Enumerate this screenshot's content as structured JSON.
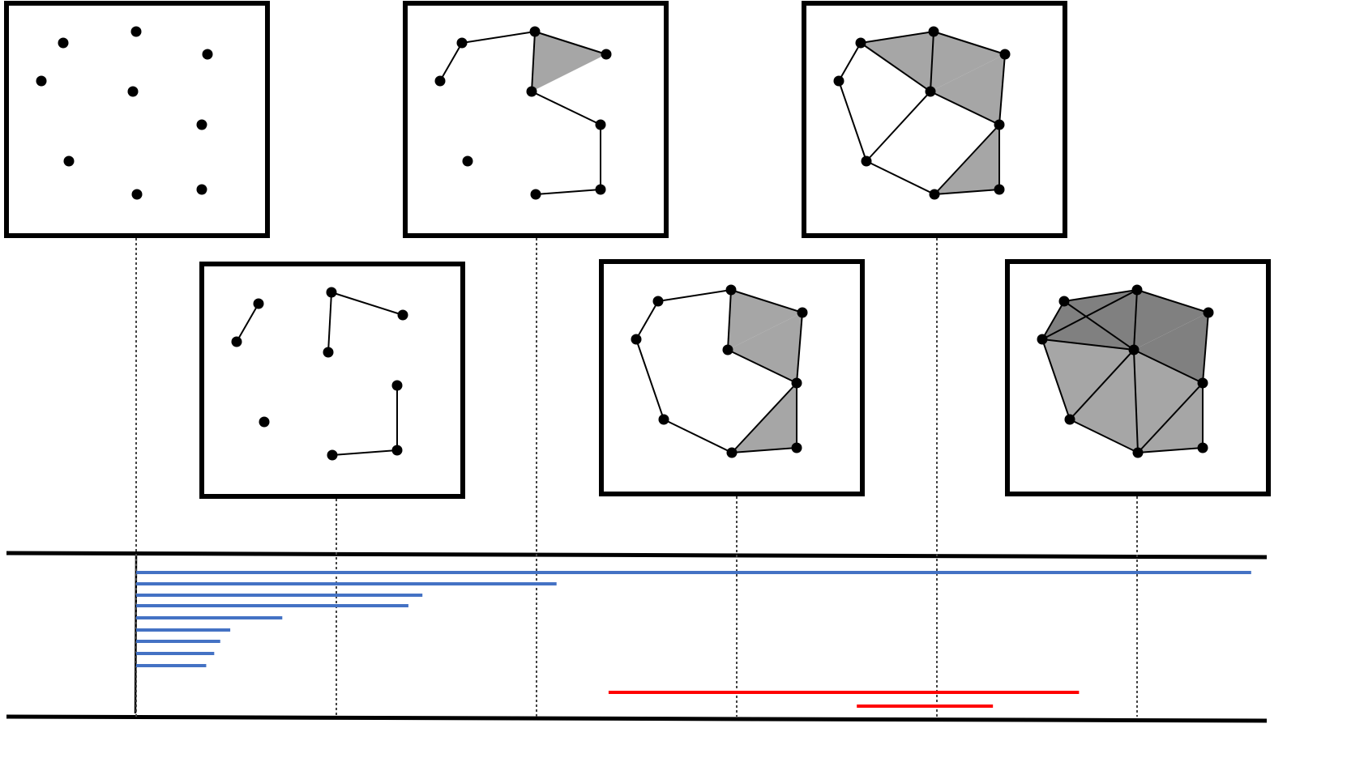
{
  "barcode": {
    "steps": [
      0,
      1,
      2,
      3,
      4,
      5
    ],
    "h0": [
      [
        0,
        5.57
      ],
      [
        0,
        2.1
      ],
      [
        0,
        1.43
      ],
      [
        0,
        1.36
      ],
      [
        0,
        0.73
      ],
      [
        0,
        0.47
      ],
      [
        0,
        0.42
      ],
      [
        0,
        0.39
      ],
      [
        0,
        0.35
      ]
    ],
    "h1": [
      [
        2.36,
        4.71
      ],
      [
        3.6,
        4.28
      ]
    ]
  }
}
